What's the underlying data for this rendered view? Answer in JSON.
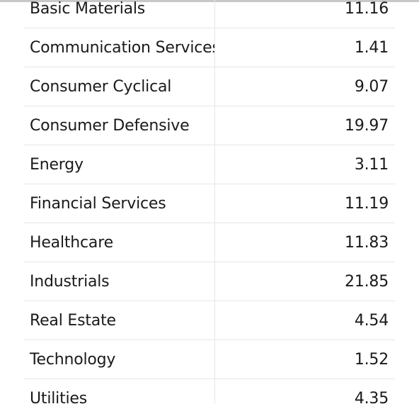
{
  "table": {
    "rows": [
      {
        "label": "Basic Materials",
        "value": "11.16"
      },
      {
        "label": "Communication Services",
        "value": "1.41"
      },
      {
        "label": "Consumer Cyclical",
        "value": "9.07"
      },
      {
        "label": "Consumer Defensive",
        "value": "19.97"
      },
      {
        "label": "Energy",
        "value": "3.11"
      },
      {
        "label": "Financial Services",
        "value": "11.19"
      },
      {
        "label": "Healthcare",
        "value": "11.83"
      },
      {
        "label": "Industrials",
        "value": "21.85"
      },
      {
        "label": "Real Estate",
        "value": "4.54"
      },
      {
        "label": "Technology",
        "value": "1.52"
      },
      {
        "label": "Utilities",
        "value": "4.35"
      }
    ]
  }
}
